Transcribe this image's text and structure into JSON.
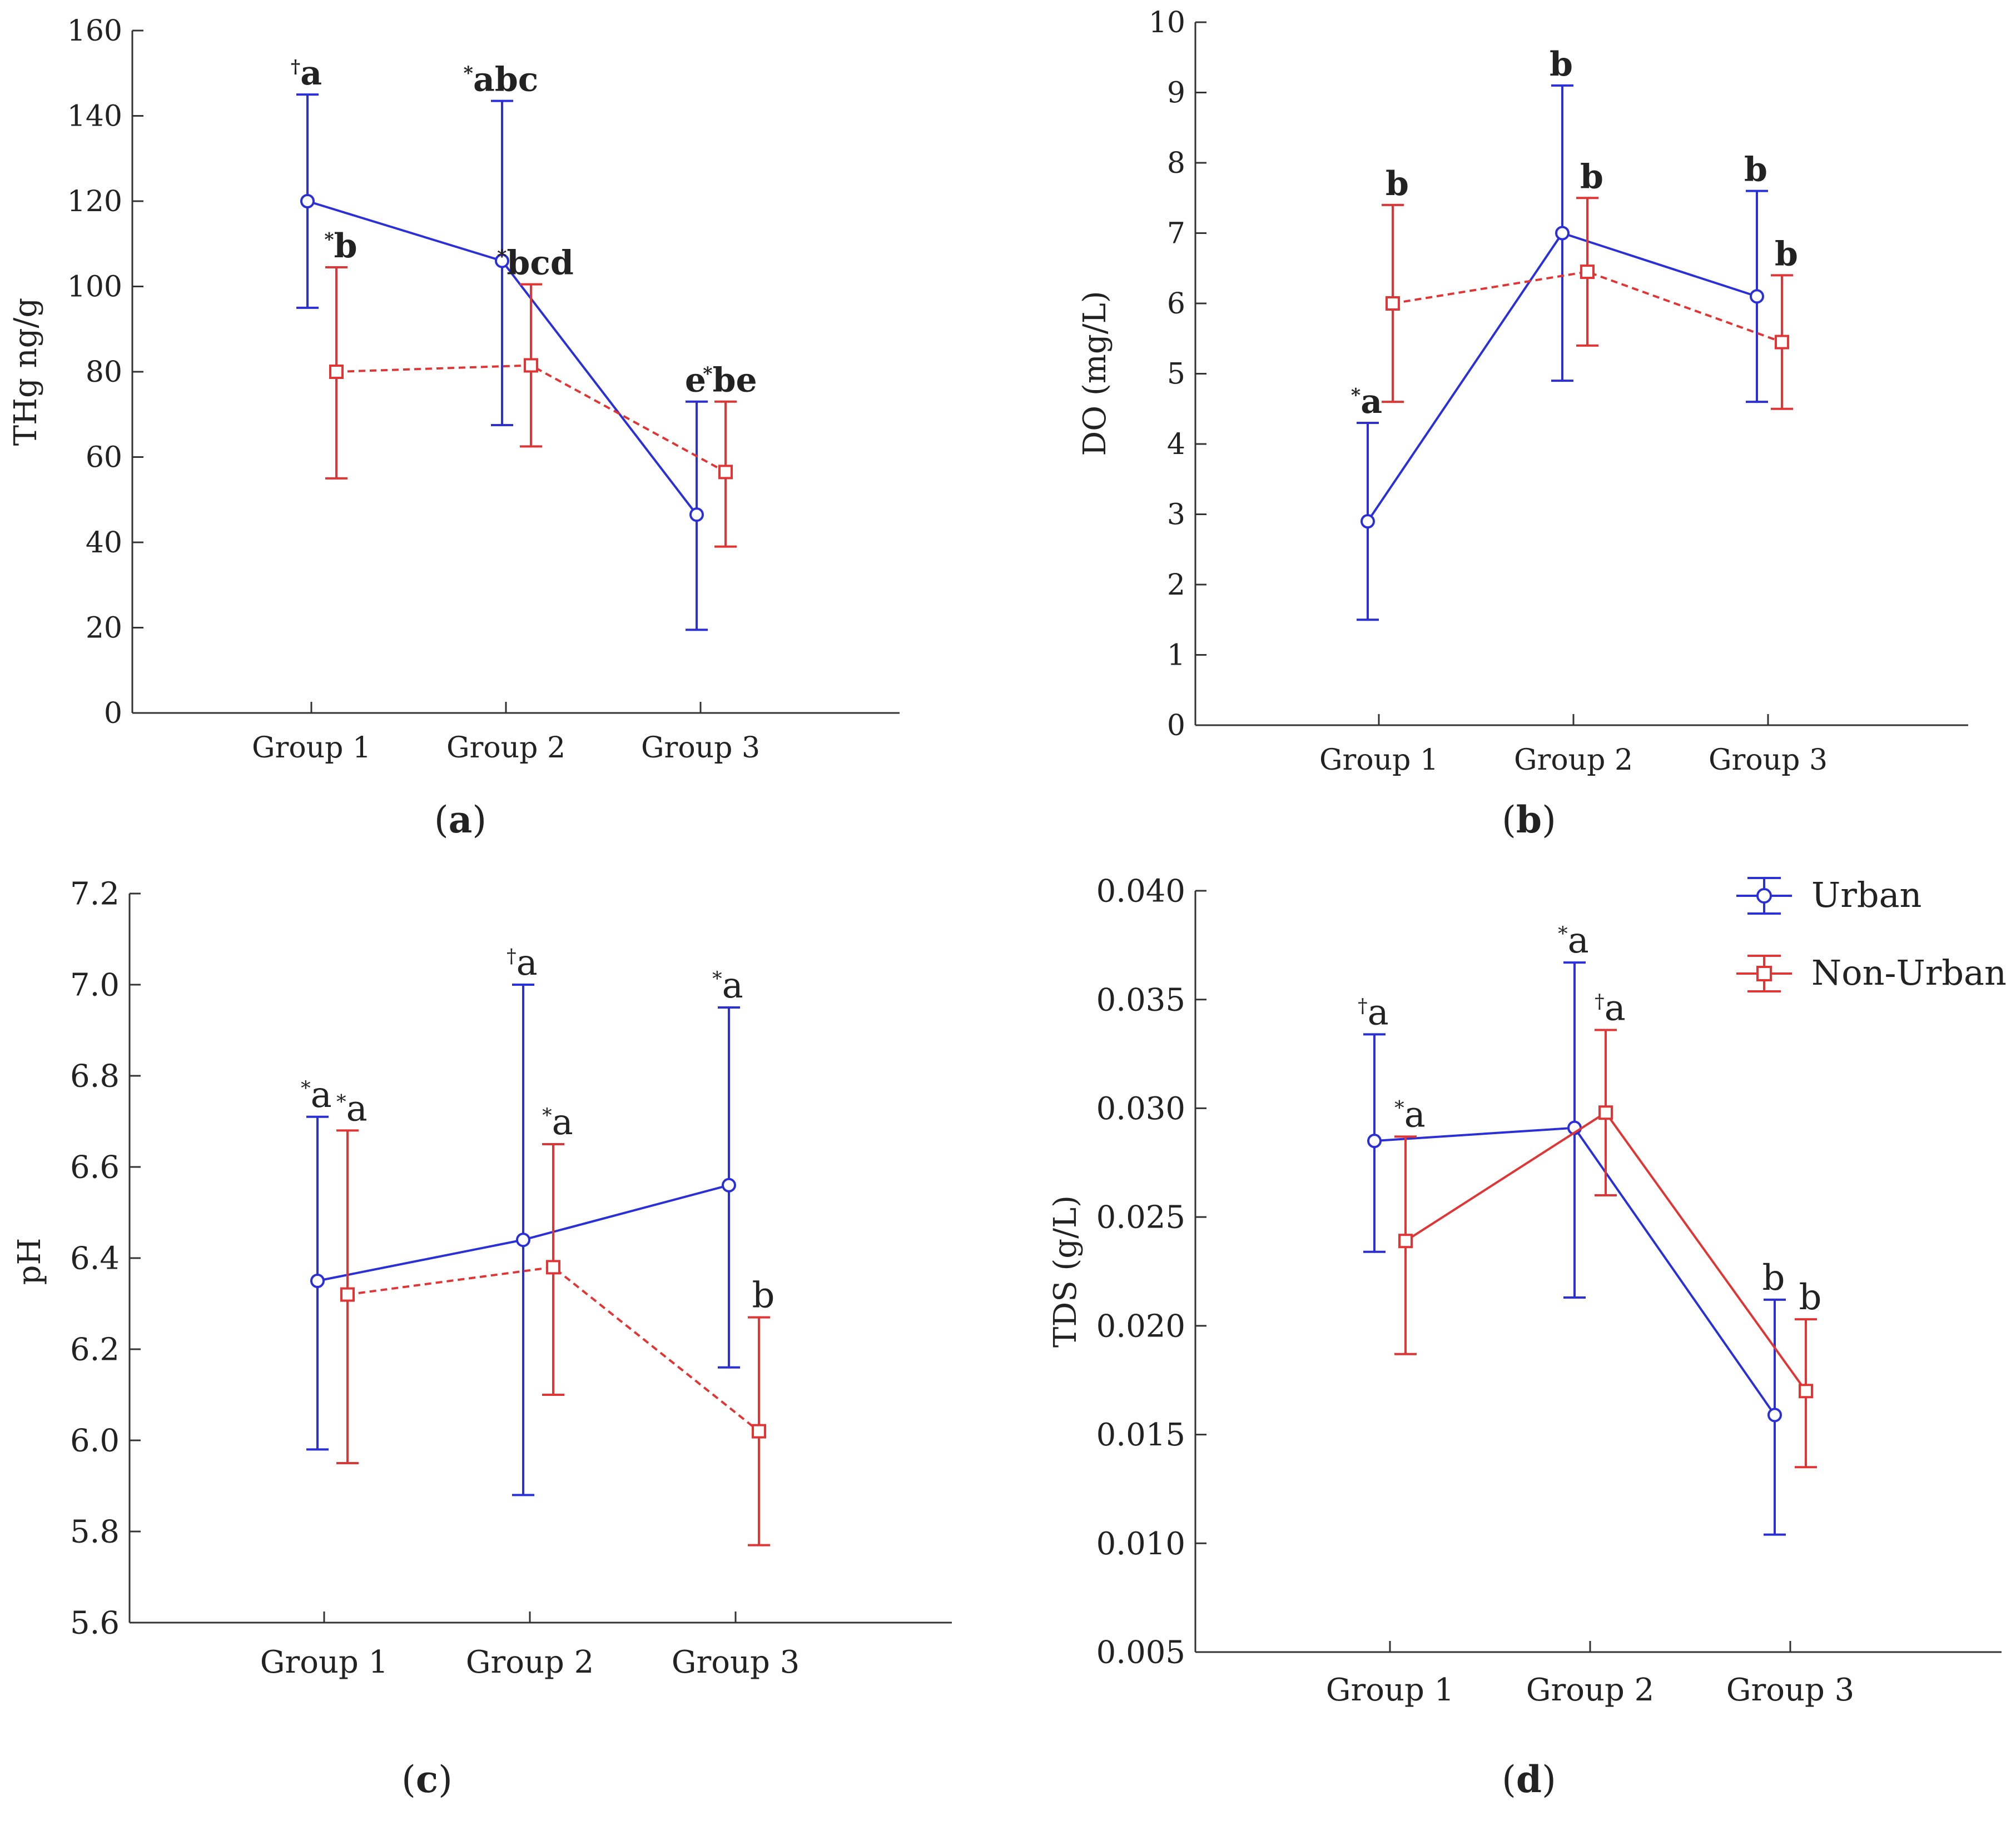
{
  "figure": {
    "captions": [
      "(a)",
      "(b)",
      "(c)",
      "(d)"
    ]
  },
  "colors": {
    "urban": "#2a2fd6",
    "nonurban": "#e03535",
    "axis": "#333333",
    "text": "#222222"
  },
  "legend": {
    "entries": [
      "Urban",
      "Non-Urban"
    ]
  },
  "chart_data": [
    {
      "type": "line",
      "panel": "a",
      "title": "",
      "xlabel": "",
      "ylabel": "THg ng/g",
      "categories": [
        "Group 1",
        "Group 2",
        "Group 3"
      ],
      "ylim": [
        0,
        160
      ],
      "yticks": [
        0,
        20,
        40,
        60,
        80,
        100,
        120,
        140,
        160
      ],
      "ytick_labels": [
        "0",
        "20",
        "40",
        "60",
        "80",
        "100",
        "120",
        "140",
        "160"
      ],
      "series": [
        {
          "name": "Urban",
          "values": [
            120,
            106,
            46.5
          ],
          "lower": [
            95,
            67.5,
            19.5
          ],
          "upper": [
            145,
            143.5,
            73
          ],
          "labels": [
            "†a",
            "*abc",
            "e"
          ]
        },
        {
          "name": "Non-Urban",
          "values": [
            80,
            81.5,
            56.5
          ],
          "lower": [
            55,
            62.5,
            39
          ],
          "upper": [
            104.5,
            100.5,
            73
          ],
          "labels": [
            "*b",
            "*bcd",
            "*be"
          ]
        }
      ]
    },
    {
      "type": "line",
      "panel": "b",
      "title": "",
      "xlabel": "",
      "ylabel": "DO (mg/L)",
      "categories": [
        "Group 1",
        "Group 2",
        "Group 3"
      ],
      "ylim": [
        0,
        10
      ],
      "yticks": [
        0,
        1,
        2,
        3,
        4,
        5,
        6,
        7,
        8,
        9,
        10
      ],
      "ytick_labels": [
        "0",
        "1",
        "2",
        "3",
        "4",
        "5",
        "6",
        "7",
        "8",
        "9",
        "10"
      ],
      "series": [
        {
          "name": "Urban",
          "values": [
            2.9,
            7.0,
            6.1
          ],
          "lower": [
            1.5,
            4.9,
            4.6
          ],
          "upper": [
            4.3,
            9.1,
            7.6
          ],
          "labels": [
            "*a",
            "b",
            "b"
          ]
        },
        {
          "name": "Non-Urban",
          "values": [
            6.0,
            6.45,
            5.45
          ],
          "lower": [
            4.6,
            5.4,
            4.5
          ],
          "upper": [
            7.4,
            7.5,
            6.4
          ],
          "labels": [
            "b",
            "b",
            "b"
          ]
        }
      ]
    },
    {
      "type": "line",
      "panel": "c",
      "title": "",
      "xlabel": "",
      "ylabel": "pH",
      "categories": [
        "Group 1",
        "Group 2",
        "Group 3"
      ],
      "ylim": [
        5.6,
        7.2
      ],
      "yticks": [
        5.6,
        5.8,
        6.0,
        6.2,
        6.4,
        6.6,
        6.8,
        7.0,
        7.2
      ],
      "ytick_labels": [
        "5.6",
        "5.8",
        "6.0",
        "6.2",
        "6.4",
        "6.6",
        "6.8",
        "7.0",
        "7.2"
      ],
      "series": [
        {
          "name": "Urban",
          "values": [
            6.35,
            6.44,
            6.56
          ],
          "lower": [
            5.98,
            5.88,
            6.16
          ],
          "upper": [
            6.71,
            7.0,
            6.95
          ],
          "labels": [
            "*a",
            "†a",
            "*a"
          ]
        },
        {
          "name": "Non-Urban",
          "values": [
            6.32,
            6.38,
            6.02
          ],
          "lower": [
            5.95,
            6.1,
            5.77
          ],
          "upper": [
            6.68,
            6.65,
            6.27
          ],
          "labels": [
            "*a",
            "*a",
            "b"
          ]
        }
      ]
    },
    {
      "type": "line",
      "panel": "d",
      "title": "",
      "xlabel": "",
      "ylabel": "TDS (g/L)",
      "categories": [
        "Group 1",
        "Group 2",
        "Group 3"
      ],
      "ylim": [
        0.005,
        0.04
      ],
      "yticks": [
        0.005,
        0.01,
        0.015,
        0.02,
        0.025,
        0.03,
        0.035,
        0.04
      ],
      "ytick_labels": [
        "0.005",
        "0.010",
        "0.015",
        "0.020",
        "0.025",
        "0.030",
        "0.035",
        "0.040"
      ],
      "legend": "top-right",
      "series": [
        {
          "name": "Urban",
          "values": [
            0.0285,
            0.0291,
            0.0159
          ],
          "lower": [
            0.0234,
            0.0213,
            0.0104
          ],
          "upper": [
            0.0334,
            0.0367,
            0.0212
          ],
          "labels": [
            "†a",
            "*a",
            "b"
          ]
        },
        {
          "name": "Non-Urban",
          "values": [
            0.0239,
            0.0298,
            0.017
          ],
          "lower": [
            0.0187,
            0.026,
            0.0135
          ],
          "upper": [
            0.0287,
            0.0336,
            0.0203
          ],
          "labels": [
            "*a",
            "†a",
            "b"
          ]
        }
      ]
    }
  ]
}
